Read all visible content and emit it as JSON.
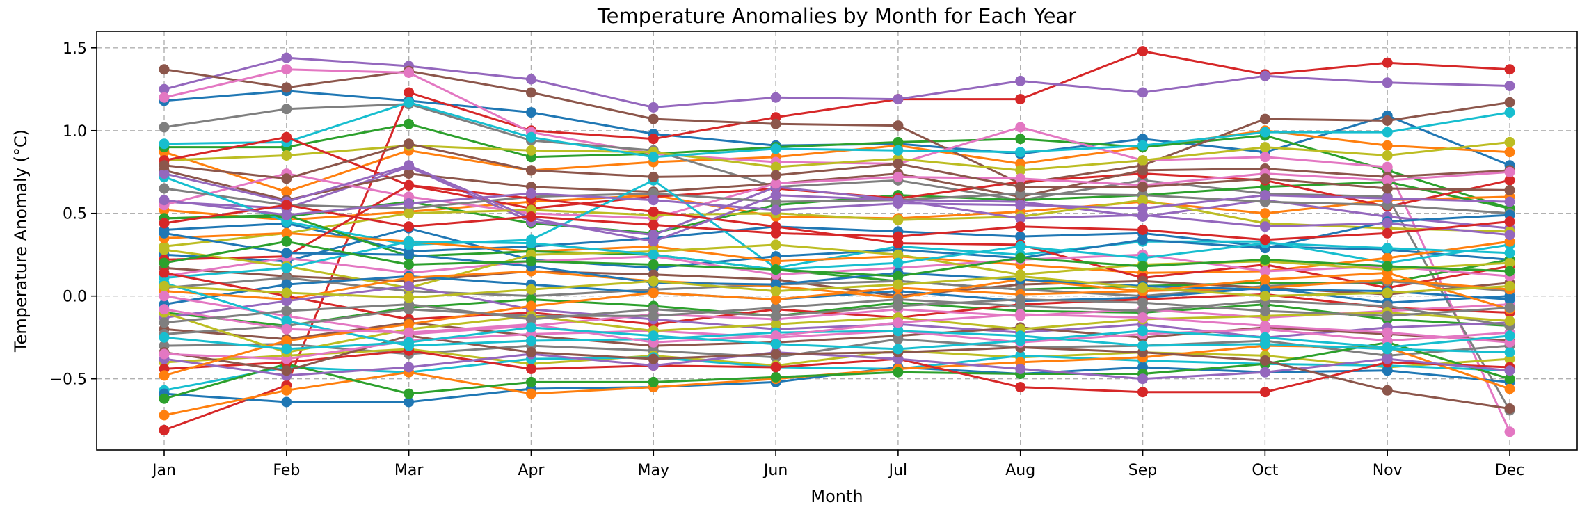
{
  "chart_data": {
    "type": "line",
    "title": "Temperature Anomalies by Month for Each Year",
    "xlabel": "Month",
    "ylabel": "Temperature Anomaly (°C)",
    "categories": [
      "Jan",
      "Feb",
      "Mar",
      "Apr",
      "May",
      "Jun",
      "Jul",
      "Aug",
      "Sep",
      "Oct",
      "Nov",
      "Dec"
    ],
    "ylim": [
      -0.93,
      1.6
    ],
    "yticks": [
      "−0.5",
      "0.0",
      "0.5",
      "1.0",
      "1.5"
    ],
    "ytick_values": [
      -0.5,
      0.0,
      0.5,
      1.0,
      1.5
    ],
    "grid": true,
    "legend": "none",
    "colors": [
      "#1f77b4",
      "#ff7f0e",
      "#2ca02c",
      "#d62728",
      "#9467bd",
      "#8c564b",
      "#e377c2",
      "#7f7f7f",
      "#bcbd22",
      "#17becf"
    ],
    "series": [
      {
        "values": [
          1.18,
          1.24,
          1.18,
          1.11,
          0.98,
          0.91,
          0.92,
          0.86,
          0.95,
          0.87,
          1.09,
          0.79
        ]
      },
      {
        "values": [
          0.87,
          0.63,
          0.88,
          0.76,
          0.81,
          0.84,
          0.91,
          0.8,
          0.9,
          1.0,
          0.91,
          0.87
        ]
      },
      {
        "values": [
          0.9,
          0.9,
          1.04,
          0.84,
          0.86,
          0.9,
          0.93,
          0.95,
          0.9,
          0.97,
          0.76,
          0.53
        ]
      },
      {
        "values": [
          -0.81,
          -0.54,
          1.23,
          1.0,
          0.95,
          1.08,
          1.19,
          1.19,
          1.48,
          1.34,
          1.41,
          1.37
        ]
      },
      {
        "values": [
          1.25,
          1.44,
          1.39,
          1.31,
          1.14,
          1.2,
          1.19,
          1.3,
          1.23,
          1.33,
          1.29,
          1.27
        ]
      },
      {
        "values": [
          1.37,
          1.26,
          1.36,
          1.23,
          1.07,
          1.04,
          1.03,
          0.68,
          0.79,
          1.07,
          1.06,
          1.17
        ]
      },
      {
        "values": [
          1.2,
          1.37,
          1.35,
          0.99,
          0.86,
          0.81,
          0.8,
          1.02,
          0.82,
          0.84,
          0.78,
          -0.82
        ]
      },
      {
        "values": [
          1.02,
          1.13,
          1.16,
          0.94,
          0.88,
          0.66,
          0.7,
          0.58,
          0.7,
          0.62,
          0.6,
          -0.69
        ]
      },
      {
        "values": [
          0.82,
          0.85,
          0.91,
          0.88,
          0.87,
          0.78,
          0.83,
          0.76,
          0.82,
          0.9,
          0.85,
          0.93
        ]
      },
      {
        "values": [
          0.92,
          0.93,
          1.17,
          0.96,
          0.84,
          0.89,
          0.88,
          0.87,
          0.91,
          0.99,
          0.99,
          1.11
        ]
      },
      {
        "values": [
          0.4,
          0.44,
          0.27,
          0.3,
          0.35,
          0.42,
          0.39,
          0.36,
          0.38,
          0.3,
          0.28,
          0.22
        ]
      },
      {
        "values": [
          0.52,
          0.46,
          0.51,
          0.57,
          0.61,
          0.48,
          0.47,
          0.51,
          0.57,
          0.5,
          0.58,
          0.6
        ]
      },
      {
        "values": [
          0.47,
          0.48,
          0.57,
          0.44,
          0.38,
          0.55,
          0.61,
          0.58,
          0.61,
          0.66,
          0.69,
          0.53
        ]
      },
      {
        "values": [
          0.82,
          0.96,
          0.67,
          0.53,
          0.6,
          0.65,
          0.59,
          0.69,
          0.74,
          0.7,
          0.54,
          0.7
        ]
      },
      {
        "values": [
          0.57,
          0.53,
          0.78,
          0.45,
          0.37,
          0.66,
          0.58,
          0.57,
          0.48,
          0.58,
          0.48,
          0.41
        ]
      },
      {
        "values": [
          0.76,
          0.58,
          0.74,
          0.66,
          0.63,
          0.68,
          0.74,
          0.6,
          0.76,
          0.77,
          0.72,
          0.76
        ]
      },
      {
        "values": [
          0.55,
          0.74,
          0.6,
          0.5,
          0.47,
          0.68,
          0.72,
          0.71,
          0.67,
          0.74,
          0.7,
          0.75
        ]
      },
      {
        "values": [
          0.65,
          0.55,
          0.53,
          0.6,
          0.62,
          0.57,
          0.58,
          0.62,
          0.61,
          0.57,
          0.55,
          0.5
        ]
      },
      {
        "values": [
          0.3,
          0.38,
          0.5,
          0.52,
          0.49,
          0.5,
          0.46,
          0.48,
          0.58,
          0.44,
          0.41,
          0.39
        ]
      },
      {
        "values": [
          0.72,
          0.45,
          0.31,
          0.34,
          0.7,
          0.17,
          0.3,
          0.25,
          0.33,
          0.33,
          0.2,
          0.31
        ]
      },
      {
        "values": [
          0.25,
          0.21,
          0.41,
          0.22,
          0.17,
          0.24,
          0.28,
          0.23,
          0.34,
          0.29,
          0.45,
          0.49
        ]
      },
      {
        "values": [
          0.35,
          0.38,
          0.33,
          0.27,
          0.3,
          0.21,
          0.24,
          0.19,
          0.14,
          0.15,
          0.23,
          0.33
        ]
      },
      {
        "values": [
          0.47,
          0.49,
          0.24,
          0.27,
          0.25,
          0.16,
          0.09,
          0.04,
          0.06,
          0.08,
          0.08,
          0.22
        ]
      },
      {
        "values": [
          0.22,
          0.24,
          0.67,
          0.59,
          0.51,
          0.42,
          0.32,
          0.31,
          0.11,
          0.19,
          0.05,
          0.18
        ]
      },
      {
        "values": [
          0.74,
          0.57,
          0.79,
          0.47,
          0.33,
          0.61,
          0.58,
          0.47,
          0.49,
          0.42,
          0.44,
          0.37
        ]
      },
      {
        "values": [
          0.17,
          0.12,
          0.09,
          0.15,
          0.13,
          0.1,
          0.0,
          0.07,
          0.09,
          0.05,
          0.01,
          0.08
        ]
      },
      {
        "values": [
          0.12,
          0.23,
          0.14,
          0.21,
          0.24,
          0.13,
          0.17,
          0.22,
          0.25,
          0.15,
          0.18,
          0.12
        ]
      },
      {
        "values": [
          0.05,
          0.11,
          0.03,
          0.0,
          0.04,
          0.07,
          0.09,
          0.04,
          0.0,
          0.06,
          0.09,
          0.03
        ]
      },
      {
        "values": [
          0.28,
          0.18,
          0.05,
          0.25,
          0.27,
          0.31,
          0.25,
          0.13,
          0.19,
          0.21,
          0.16,
          0.2
        ]
      },
      {
        "values": [
          0.11,
          0.17,
          0.33,
          0.32,
          0.25,
          0.16,
          0.2,
          0.3,
          0.23,
          0.32,
          0.29,
          0.26
        ]
      },
      {
        "values": [
          -0.05,
          0.07,
          0.12,
          0.07,
          0.02,
          -0.02,
          0.03,
          -0.03,
          -0.01,
          0.05,
          -0.04,
          0.0
        ]
      },
      {
        "values": [
          0.03,
          -0.02,
          0.11,
          0.15,
          0.09,
          0.06,
          -0.01,
          0.1,
          0.03,
          0.05,
          0.1,
          0.04
        ]
      },
      {
        "values": [
          -0.1,
          -0.18,
          -0.07,
          -0.02,
          -0.06,
          -0.12,
          -0.04,
          -0.09,
          -0.1,
          -0.05,
          -0.14,
          -0.18
        ]
      },
      {
        "values": [
          0.14,
          0.0,
          -0.14,
          -0.1,
          -0.17,
          -0.08,
          -0.13,
          -0.05,
          -0.02,
          0.01,
          -0.07,
          -0.1
        ]
      },
      {
        "values": [
          -0.13,
          -0.03,
          0.06,
          -0.08,
          -0.14,
          -0.2,
          -0.17,
          -0.22,
          -0.17,
          -0.25,
          -0.19,
          -0.16
        ]
      },
      {
        "values": [
          -0.2,
          -0.26,
          -0.16,
          -0.24,
          -0.3,
          -0.28,
          -0.24,
          -0.19,
          -0.25,
          -0.19,
          -0.23,
          -0.27
        ]
      },
      {
        "values": [
          0.0,
          -0.12,
          -0.23,
          -0.18,
          -0.11,
          -0.14,
          -0.08,
          -0.12,
          -0.08,
          -0.13,
          -0.09,
          -0.05
        ]
      },
      {
        "values": [
          -0.3,
          -0.29,
          -0.35,
          -0.3,
          -0.33,
          -0.37,
          -0.26,
          -0.31,
          -0.3,
          -0.27,
          -0.36,
          -0.3
        ]
      },
      {
        "values": [
          -0.4,
          -0.36,
          -0.32,
          -0.41,
          -0.36,
          -0.42,
          -0.33,
          -0.37,
          -0.34,
          -0.36,
          -0.43,
          -0.38
        ]
      },
      {
        "values": [
          -0.57,
          -0.43,
          -0.46,
          -0.38,
          -0.37,
          -0.43,
          -0.44,
          -0.36,
          -0.39,
          -0.41,
          -0.42,
          -0.45
        ]
      },
      {
        "values": [
          -0.59,
          -0.64,
          -0.64,
          -0.56,
          -0.55,
          -0.52,
          -0.43,
          -0.47,
          -0.43,
          -0.46,
          -0.45,
          -0.52
        ]
      },
      {
        "values": [
          -0.72,
          -0.57,
          -0.46,
          -0.59,
          -0.55,
          -0.5,
          -0.44,
          -0.4,
          -0.37,
          -0.3,
          -0.31,
          -0.56
        ]
      },
      {
        "values": [
          -0.62,
          -0.41,
          -0.59,
          -0.52,
          -0.52,
          -0.49,
          -0.46,
          -0.47,
          -0.47,
          -0.41,
          -0.28,
          -0.5
        ]
      },
      {
        "values": [
          -0.44,
          -0.4,
          -0.33,
          -0.44,
          -0.42,
          -0.43,
          -0.38,
          -0.55,
          -0.58,
          -0.58,
          -0.4,
          -0.43
        ]
      },
      {
        "values": [
          -0.38,
          -0.48,
          -0.43,
          -0.35,
          -0.42,
          -0.34,
          -0.38,
          -0.44,
          -0.5,
          -0.46,
          -0.38,
          -0.45
        ]
      },
      {
        "values": [
          -0.34,
          -0.45,
          -0.24,
          -0.34,
          -0.38,
          -0.35,
          -0.34,
          -0.31,
          -0.34,
          -0.39,
          -0.57,
          -0.68
        ]
      },
      {
        "values": [
          -0.35,
          -0.38,
          -0.27,
          -0.23,
          -0.21,
          -0.25,
          -0.21,
          -0.28,
          -0.23,
          -0.2,
          -0.27,
          -0.22
        ]
      },
      {
        "values": [
          -0.23,
          -0.18,
          -0.08,
          -0.12,
          -0.12,
          -0.07,
          -0.02,
          -0.06,
          -0.09,
          -0.03,
          -0.06,
          -0.18
        ]
      },
      {
        "values": [
          -0.1,
          -0.34,
          -0.2,
          -0.12,
          -0.21,
          -0.17,
          -0.13,
          -0.2,
          -0.14,
          -0.12,
          -0.1,
          -0.15
        ]
      },
      {
        "values": [
          0.08,
          -0.15,
          -0.3,
          -0.27,
          -0.26,
          -0.22,
          -0.21,
          -0.24,
          -0.3,
          -0.29,
          -0.32,
          -0.34
        ]
      },
      {
        "values": [
          0.38,
          0.26,
          0.25,
          0.18,
          0.08,
          0.07,
          0.14,
          0.1,
          0.06,
          0.04,
          0.03,
          -0.02
        ]
      },
      {
        "values": [
          -0.48,
          -0.27,
          -0.17,
          -0.06,
          0.02,
          -0.02,
          0.05,
          0.01,
          0.03,
          0.1,
          0.14,
          -0.08
        ]
      },
      {
        "values": [
          0.2,
          0.33,
          0.19,
          0.21,
          0.19,
          0.16,
          0.12,
          0.23,
          0.18,
          0.22,
          0.18,
          0.15
        ]
      },
      {
        "values": [
          0.44,
          0.55,
          0.42,
          0.48,
          0.43,
          0.38,
          0.36,
          0.42,
          0.4,
          0.34,
          0.38,
          0.45
        ]
      },
      {
        "values": [
          0.58,
          0.49,
          0.56,
          0.62,
          0.58,
          0.52,
          0.56,
          0.55,
          0.53,
          0.61,
          0.59,
          0.57
        ]
      },
      {
        "values": [
          0.79,
          0.71,
          0.92,
          0.76,
          0.72,
          0.73,
          0.8,
          0.66,
          0.66,
          0.71,
          0.65,
          0.64
        ]
      },
      {
        "values": [
          -0.08,
          -0.2,
          -0.22,
          -0.17,
          -0.28,
          -0.24,
          -0.16,
          -0.11,
          -0.13,
          -0.18,
          -0.22,
          -0.28
        ]
      },
      {
        "values": [
          -0.16,
          -0.09,
          -0.05,
          -0.14,
          -0.08,
          -0.12,
          -0.06,
          -0.02,
          -0.04,
          -0.09,
          -0.12,
          -0.07
        ]
      },
      {
        "values": [
          0.06,
          0.02,
          -0.01,
          0.04,
          0.09,
          0.03,
          0.07,
          0.12,
          0.05,
          0.0,
          0.02,
          0.06
        ]
      },
      {
        "values": [
          -0.25,
          -0.32,
          -0.28,
          -0.19,
          -0.24,
          -0.29,
          -0.32,
          -0.27,
          -0.21,
          -0.25,
          -0.31,
          -0.24
        ]
      }
    ]
  }
}
